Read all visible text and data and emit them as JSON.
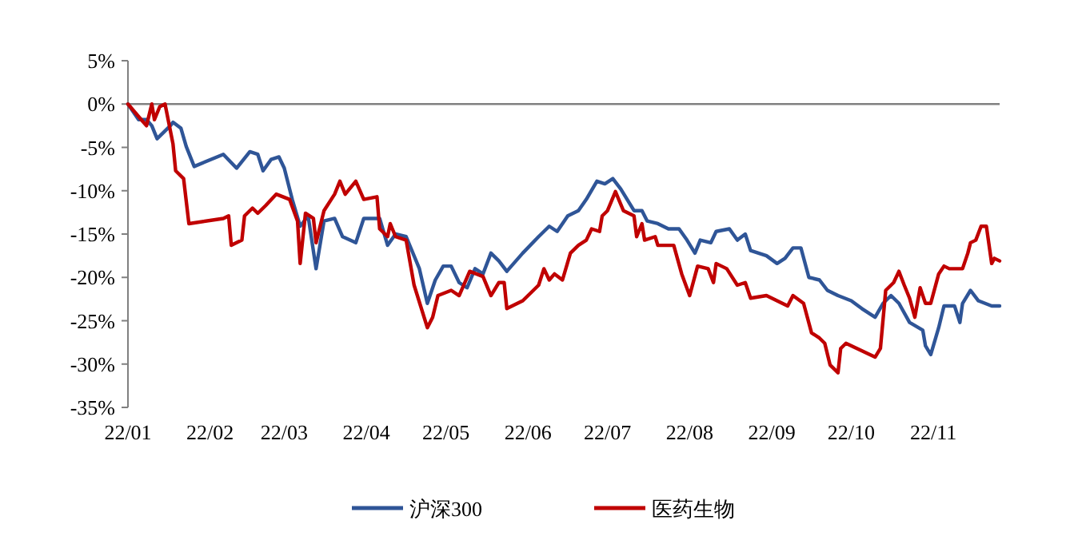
{
  "chart_data": {
    "type": "line",
    "xlim": [
      "--01-01",
      "--11-26"
    ],
    "xticks": [
      {
        "value": "--01-01",
        "label": "22/01"
      },
      {
        "value": "--02-01",
        "label": "22/02"
      },
      {
        "value": "--03-01",
        "label": "22/03"
      },
      {
        "value": "--04-01",
        "label": "22/04"
      },
      {
        "value": "--05-01",
        "label": "22/05"
      },
      {
        "value": "--06-01",
        "label": "22/06"
      },
      {
        "value": "--07-01",
        "label": "22/07"
      },
      {
        "value": "--08-01",
        "label": "22/08"
      },
      {
        "value": "--09-01",
        "label": "22/09"
      },
      {
        "value": "--10-01",
        "label": "22/10"
      },
      {
        "value": "--11-01",
        "label": "22/11"
      }
    ],
    "ylim": [
      -35,
      5
    ],
    "yticks": [
      {
        "value": 5,
        "label": "5%"
      },
      {
        "value": 0,
        "label": "0%"
      },
      {
        "value": -5,
        "label": "-5%"
      },
      {
        "value": -10,
        "label": "-10%"
      },
      {
        "value": -15,
        "label": "-15%"
      },
      {
        "value": -20,
        "label": "-20%"
      },
      {
        "value": -25,
        "label": "-25%"
      },
      {
        "value": -30,
        "label": "-30%"
      },
      {
        "value": -35,
        "label": "-35%"
      }
    ],
    "ref_lines": [
      {
        "axis": "y",
        "value": 0,
        "color": "#808080"
      }
    ],
    "legend": "bottom",
    "grid": false,
    "marker": "none",
    "line_style": "solid",
    "series": [
      {
        "name": "沪深300",
        "color": "#2f5597",
        "x": [
          "--01-01",
          "--01-05",
          "--01-08",
          "--01-10",
          "--01-12",
          "--01-17",
          "--01-18",
          "--01-21",
          "--01-23",
          "--01-26",
          "--02-06",
          "--02-11",
          "--02-16",
          "--02-19",
          "--02-21",
          "--02-24",
          "--02-27",
          "--03-01",
          "--03-04",
          "--03-07",
          "--03-10",
          "--03-13",
          "--03-16",
          "--03-20",
          "--03-23",
          "--03-28",
          "--03-31",
          "--04-06",
          "--04-09",
          "--04-12",
          "--04-16",
          "--04-21",
          "--04-24",
          "--04-27",
          "--04-30",
          "--05-03",
          "--05-06",
          "--05-09",
          "--05-12",
          "--05-15",
          "--05-18",
          "--05-21",
          "--05-24",
          "--05-30",
          "--06-05",
          "--06-09",
          "--06-12",
          "--06-16",
          "--06-20",
          "--06-23",
          "--06-27",
          "--06-30",
          "--07-03",
          "--07-06",
          "--07-11",
          "--07-14",
          "--07-16",
          "--07-20",
          "--07-24",
          "--07-28",
          "--07-31",
          "--08-03",
          "--08-05",
          "--08-09",
          "--08-11",
          "--08-16",
          "--08-19",
          "--08-22",
          "--08-24",
          "--08-30",
          "--09-03",
          "--09-06",
          "--09-09",
          "--09-12",
          "--09-15",
          "--09-19",
          "--09-22",
          "--09-26",
          "--10-01",
          "--10-05",
          "--10-10",
          "--10-13",
          "--10-16",
          "--10-19",
          "--10-23",
          "--10-28",
          "--10-29",
          "--10-31",
          "--11-03",
          "--11-05",
          "--11-09",
          "--11-11",
          "--11-12",
          "--11-15",
          "--11-18",
          "--11-23",
          "--11-26"
        ],
        "values": [
          0,
          -1.8,
          -1.8,
          -2.5,
          -4.0,
          -2.5,
          -2.1,
          -2.8,
          -4.9,
          -7.2,
          -5.8,
          -7.4,
          -5.5,
          -5.8,
          -7.7,
          -6.4,
          -6.1,
          -7.4,
          -11.0,
          -14.1,
          -12.9,
          -19.0,
          -13.5,
          -13.2,
          -15.3,
          -16.0,
          -13.2,
          -13.2,
          -16.3,
          -15.0,
          -15.3,
          -19.0,
          -23.0,
          -20.3,
          -18.7,
          -18.7,
          -20.6,
          -21.2,
          -19.0,
          -19.6,
          -17.2,
          -18.1,
          -19.3,
          -17.2,
          -15.3,
          -14.1,
          -14.7,
          -12.9,
          -12.3,
          -11.0,
          -8.9,
          -9.2,
          -8.6,
          -9.8,
          -12.3,
          -12.3,
          -13.5,
          -13.8,
          -14.4,
          -14.4,
          -15.7,
          -17.2,
          -15.7,
          -16.0,
          -14.7,
          -14.4,
          -15.7,
          -15.0,
          -16.9,
          -17.5,
          -18.4,
          -17.8,
          -16.6,
          -16.6,
          -20.0,
          -20.3,
          -21.5,
          -22.1,
          -22.7,
          -23.6,
          -24.6,
          -23.0,
          -22.1,
          -23.0,
          -25.2,
          -26.1,
          -27.9,
          -28.9,
          -25.8,
          -23.3,
          -23.3,
          -25.2,
          -23.0,
          -21.5,
          -22.7,
          -23.3,
          -23.3
        ]
      },
      {
        "name": "医药生物",
        "color": "#c00000",
        "x": [
          "--01-01",
          "--01-06",
          "--01-08",
          "--01-10",
          "--01-11",
          "--01-13",
          "--01-15",
          "--01-18",
          "--01-19",
          "--01-22",
          "--01-24",
          "--02-06",
          "--02-08",
          "--02-09",
          "--02-13",
          "--02-14",
          "--02-17",
          "--02-19",
          "--02-22",
          "--02-26",
          "--03-03",
          "--03-06",
          "--03-07",
          "--03-09",
          "--03-12",
          "--03-13",
          "--03-16",
          "--03-20",
          "--03-22",
          "--03-24",
          "--03-28",
          "--03-31",
          "--04-05",
          "--04-06",
          "--04-09",
          "--04-10",
          "--04-12",
          "--04-16",
          "--04-19",
          "--04-24",
          "--04-26",
          "--04-28",
          "--05-03",
          "--05-06",
          "--05-10",
          "--05-15",
          "--05-18",
          "--05-21",
          "--05-23",
          "--05-24",
          "--05-30",
          "--06-01",
          "--06-05",
          "--06-07",
          "--06-09",
          "--06-11",
          "--06-14",
          "--06-17",
          "--06-20",
          "--06-23",
          "--06-25",
          "--06-28",
          "--06-29",
          "--07-01",
          "--07-04",
          "--07-07",
          "--07-11",
          "--07-12",
          "--07-14",
          "--07-15",
          "--07-19",
          "--07-20",
          "--07-26",
          "--07-29",
          "--08-01",
          "--08-04",
          "--08-08",
          "--08-10",
          "--08-11",
          "--08-15",
          "--08-19",
          "--08-22",
          "--08-24",
          "--08-30",
          "--09-03",
          "--09-07",
          "--09-09",
          "--09-13",
          "--09-16",
          "--09-19",
          "--09-21",
          "--09-23",
          "--09-26",
          "--09-27",
          "--09-29",
          "--10-10",
          "--10-12",
          "--10-14",
          "--10-17",
          "--10-19",
          "--10-21",
          "--10-23",
          "--10-25",
          "--10-27",
          "--10-29",
          "--10-31",
          "--11-03",
          "--11-05",
          "--11-07",
          "--11-12",
          "--11-14",
          "--11-15",
          "--11-17",
          "--11-19",
          "--11-21",
          "--11-23",
          "--11-24",
          "--11-26"
        ],
        "values": [
          0,
          -1.8,
          -2.5,
          0,
          -1.8,
          -0.3,
          0,
          -4.6,
          -7.7,
          -8.6,
          -13.8,
          -13.2,
          -12.9,
          -16.3,
          -15.7,
          -12.9,
          -12.0,
          -12.6,
          -11.7,
          -10.4,
          -11.0,
          -13.5,
          -18.4,
          -12.6,
          -13.2,
          -16.0,
          -12.3,
          -10.4,
          -8.9,
          -10.4,
          -8.9,
          -11.0,
          -10.7,
          -14.4,
          -15.3,
          -13.8,
          -15.3,
          -15.7,
          -20.9,
          -25.8,
          -24.6,
          -22.1,
          -21.5,
          -22.1,
          -19.3,
          -19.9,
          -22.1,
          -20.6,
          -20.6,
          -23.6,
          -22.7,
          -22.1,
          -20.9,
          -19.0,
          -20.3,
          -19.6,
          -20.3,
          -17.2,
          -16.3,
          -15.7,
          -14.4,
          -14.7,
          -12.9,
          -12.3,
          -10.1,
          -12.3,
          -12.9,
          -15.3,
          -13.8,
          -15.7,
          -15.3,
          -16.3,
          -16.3,
          -19.6,
          -22.1,
          -18.7,
          -19.0,
          -20.6,
          -18.4,
          -19.0,
          -20.9,
          -20.6,
          -22.4,
          -22.1,
          -22.7,
          -23.3,
          -22.1,
          -23.0,
          -26.4,
          -27.0,
          -27.6,
          -30.1,
          -31.0,
          -28.2,
          -27.6,
          -29.2,
          -28.2,
          -21.5,
          -20.6,
          -19.3,
          -20.9,
          -22.4,
          -24.6,
          -21.2,
          -23.0,
          -23.0,
          -19.6,
          -18.7,
          -19.0,
          -19.0,
          -17.2,
          -16.0,
          -15.7,
          -14.1,
          -14.1,
          -18.4,
          -17.8,
          -18.1
        ]
      }
    ]
  }
}
